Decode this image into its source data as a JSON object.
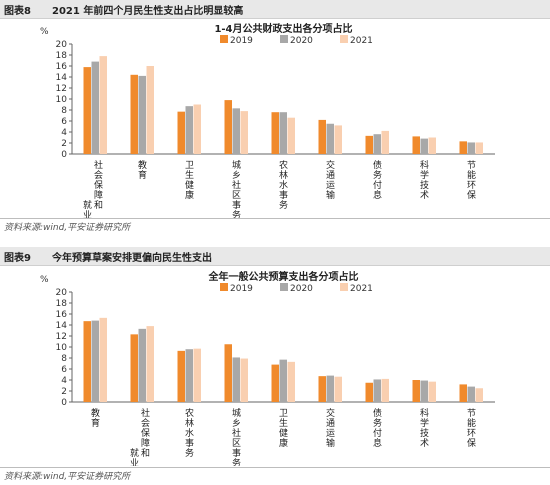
{
  "figure8": {
    "number": "图表8",
    "caption": "2021 年前四个月民生性支出占比明显较高",
    "source": "资料来源:wind,平安证券研究所"
  },
  "figure9": {
    "number": "图表9",
    "caption": "今年预算草案安排更偏向民生性支出",
    "source": "资料来源:wind,平安证券研究所"
  },
  "colors": {
    "2019": "#f08a2c",
    "2020": "#a8a8a8",
    "2021": "#f9cfb0"
  },
  "chart_data": [
    {
      "type": "bar",
      "title": "1-4月公共财政支出各分项占比",
      "ylabel": "%",
      "ylim": [
        0,
        20
      ],
      "yticks": [
        0,
        2,
        4,
        6,
        8,
        10,
        12,
        14,
        16,
        18,
        20
      ],
      "categories": [
        [
          "社",
          "会",
          "保",
          "障",
          "和",
          "就",
          "业"
        ],
        [
          "教",
          "育"
        ],
        [
          "卫",
          "生",
          "健",
          "康"
        ],
        [
          "城",
          "乡",
          "社",
          "区",
          "事",
          "务"
        ],
        [
          "农",
          "林",
          "水",
          "事",
          "务"
        ],
        [
          "交",
          "通",
          "运",
          "输"
        ],
        [
          "债",
          "务",
          "付",
          "息"
        ],
        [
          "科",
          "学",
          "技",
          "术"
        ],
        [
          "节",
          "能",
          "环",
          "保"
        ]
      ],
      "series": [
        {
          "name": "2019",
          "values": [
            15.8,
            14.4,
            7.7,
            9.8,
            7.6,
            6.2,
            3.3,
            3.2,
            2.3
          ]
        },
        {
          "name": "2020",
          "values": [
            16.8,
            14.2,
            8.7,
            8.3,
            7.6,
            5.5,
            3.6,
            2.8,
            2.1
          ]
        },
        {
          "name": "2021",
          "values": [
            17.8,
            16.0,
            9.0,
            7.8,
            6.6,
            5.2,
            4.2,
            3.0,
            2.1
          ]
        }
      ],
      "legend_position": "top-center",
      "grid": false
    },
    {
      "type": "bar",
      "title": "全年一般公共预算支出各分项占比",
      "ylabel": "%",
      "ylim": [
        0,
        20
      ],
      "yticks": [
        0,
        2,
        4,
        6,
        8,
        10,
        12,
        14,
        16,
        18,
        20
      ],
      "categories": [
        [
          "教",
          "育"
        ],
        [
          "社",
          "会",
          "保",
          "障",
          "和",
          "就",
          "业"
        ],
        [
          "农",
          "林",
          "水",
          "事",
          "务"
        ],
        [
          "城",
          "乡",
          "社",
          "区",
          "事",
          "务"
        ],
        [
          "卫",
          "生",
          "健",
          "康"
        ],
        [
          "交",
          "通",
          "运",
          "输"
        ],
        [
          "债",
          "务",
          "付",
          "息"
        ],
        [
          "科",
          "学",
          "技",
          "术"
        ],
        [
          "节",
          "能",
          "环",
          "保"
        ]
      ],
      "series": [
        {
          "name": "2019",
          "values": [
            14.7,
            12.3,
            9.3,
            10.5,
            6.8,
            4.7,
            3.5,
            4.0,
            3.2
          ]
        },
        {
          "name": "2020",
          "values": [
            14.8,
            13.3,
            9.6,
            8.1,
            7.7,
            4.8,
            4.1,
            3.9,
            2.8
          ]
        },
        {
          "name": "2021",
          "values": [
            15.3,
            13.8,
            9.7,
            7.9,
            7.3,
            4.6,
            4.2,
            3.7,
            2.5
          ]
        }
      ],
      "legend_position": "top-center",
      "grid": false
    }
  ]
}
